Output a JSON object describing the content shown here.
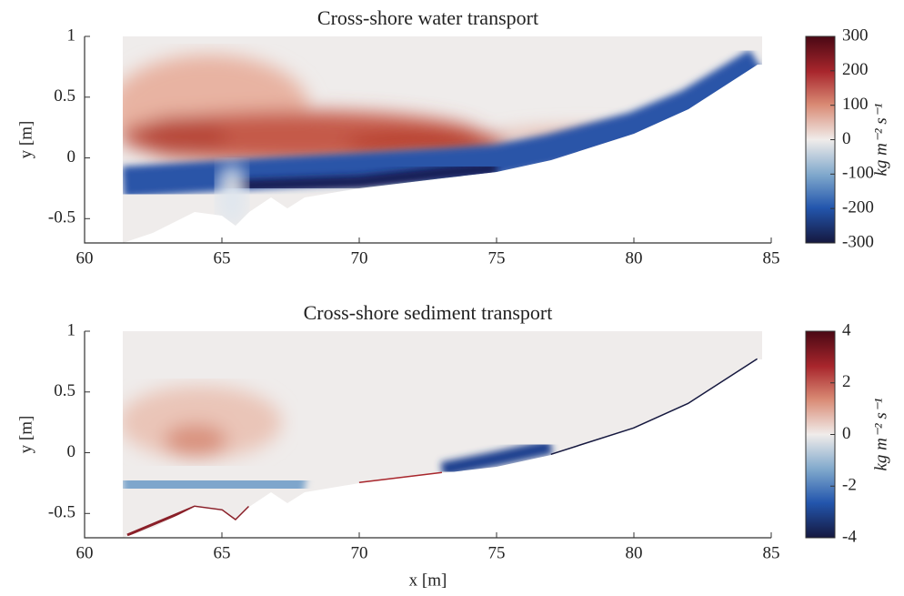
{
  "chart_data": [
    {
      "type": "heatmap",
      "title": "Cross-shore water transport",
      "xlim": [
        60,
        85
      ],
      "xticks": [
        60,
        65,
        70,
        75,
        80,
        85
      ],
      "ylim": [
        -0.7,
        1
      ],
      "yticks": [
        -0.5,
        0,
        0.5,
        1
      ],
      "ylabel": "y [m]",
      "clim": [
        -300,
        300
      ],
      "cticks": [
        -300,
        -200,
        -100,
        0,
        100,
        200,
        300
      ],
      "clabel": "kg m⁻² s⁻¹"
    },
    {
      "type": "heatmap",
      "title": "Cross-shore sediment transport",
      "xlim": [
        60,
        85
      ],
      "xticks": [
        60,
        65,
        70,
        75,
        80,
        85
      ],
      "ylim": [
        -0.7,
        1
      ],
      "yticks": [
        -0.5,
        0,
        0.5,
        1
      ],
      "ylabel": "y [m]",
      "xlabel": "x [m]",
      "clim": [
        -4,
        4
      ],
      "cticks": [
        -4,
        -2,
        0,
        2,
        4
      ],
      "clabel": "kg m⁻² s⁻¹"
    }
  ]
}
